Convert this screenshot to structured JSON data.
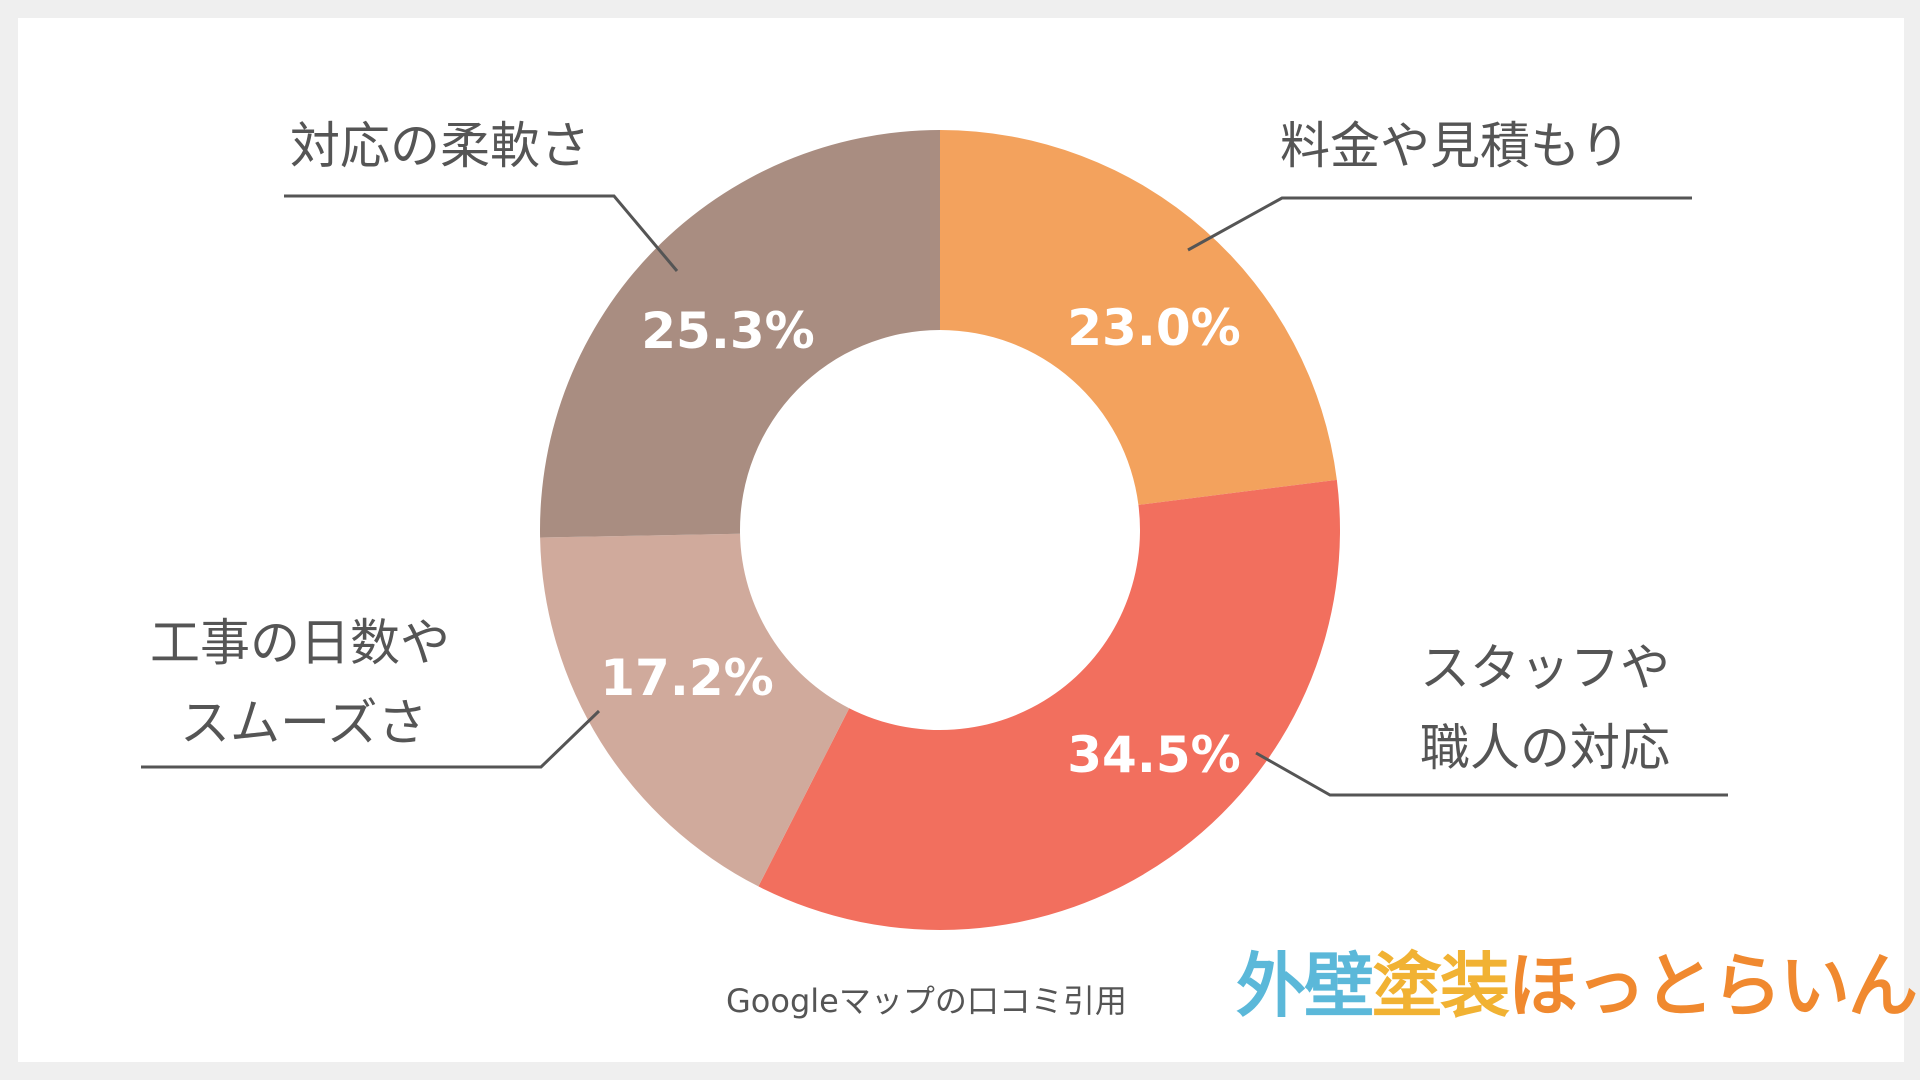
{
  "chart_data": {
    "type": "pie",
    "donut": true,
    "start_angle_deg": 0,
    "direction": "clockwise",
    "slices": [
      {
        "label": "料金や見積もり",
        "value": 23.0,
        "display": "23.0%",
        "color": "#f3a25d"
      },
      {
        "label": "スタッフや職人の対応",
        "value": 34.5,
        "display": "34.5%",
        "color": "#f26f5e"
      },
      {
        "label": "工事の日数やスムーズさ",
        "value": 17.2,
        "display": "17.2%",
        "color": "#d0aa9c"
      },
      {
        "label": "対応の柔軟さ",
        "value": 25.3,
        "display": "25.3%",
        "color": "#a98d81"
      }
    ],
    "category_labels": {
      "fee": "料金や見積もり",
      "staff_line1": "スタッフや",
      "staff_line2": "職人の対応",
      "days_line1": "工事の日数や",
      "days_line2": "スムーズさ",
      "flex": "対応の柔軟さ"
    },
    "source": "Googleマップの口コミ引用"
  },
  "brand": {
    "part1": "外壁",
    "part2": "塗装",
    "part3": "ほっとらいん"
  }
}
